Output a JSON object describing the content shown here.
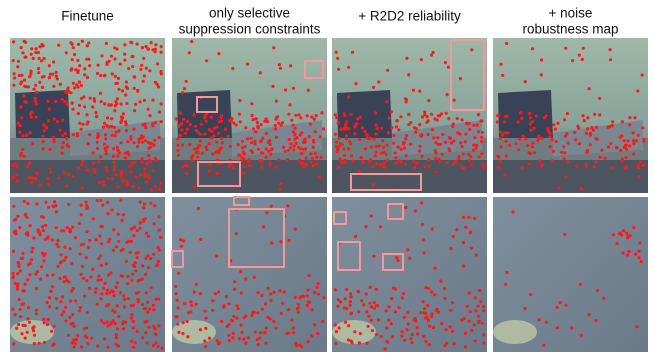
{
  "columns": [
    {
      "title_lines": [
        "Finetune"
      ]
    },
    {
      "title_lines": [
        "only selective",
        "suppression constraints"
      ]
    },
    {
      "title_lines": [
        "+ R2D2 reliability"
      ]
    },
    {
      "title_lines": [
        "+ noise",
        "robustness map"
      ]
    }
  ]
}
